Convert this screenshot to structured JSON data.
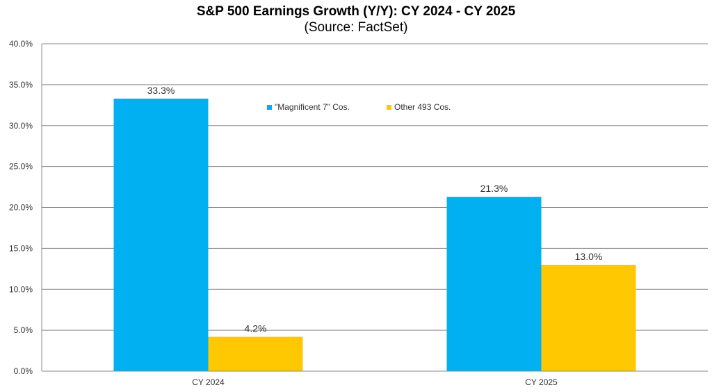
{
  "chart_data": {
    "type": "bar",
    "title": "S&P 500 Earnings Growth (Y/Y): CY 2024 - CY 2025",
    "subtitle": "(Source: FactSet)",
    "xlabel": "",
    "ylabel": "",
    "categories": [
      "CY 2024",
      "CY 2025"
    ],
    "series": [
      {
        "name": "\"Magnificent 7\" Cos.",
        "values": [
          33.3,
          21.3
        ],
        "labels": [
          "33.3%",
          "21.3%"
        ],
        "color": "#00B0F0"
      },
      {
        "name": "Other 493 Cos.",
        "values": [
          4.2,
          13.0
        ],
        "labels": [
          "4.2%",
          "13.0%"
        ],
        "color": "#FFC800"
      }
    ],
    "ylim": [
      0,
      40
    ],
    "yticks": [
      "0.0%",
      "5.0%",
      "10.0%",
      "15.0%",
      "20.0%",
      "25.0%",
      "30.0%",
      "35.0%",
      "40.0%"
    ],
    "grid": true,
    "legend": "top-center"
  }
}
